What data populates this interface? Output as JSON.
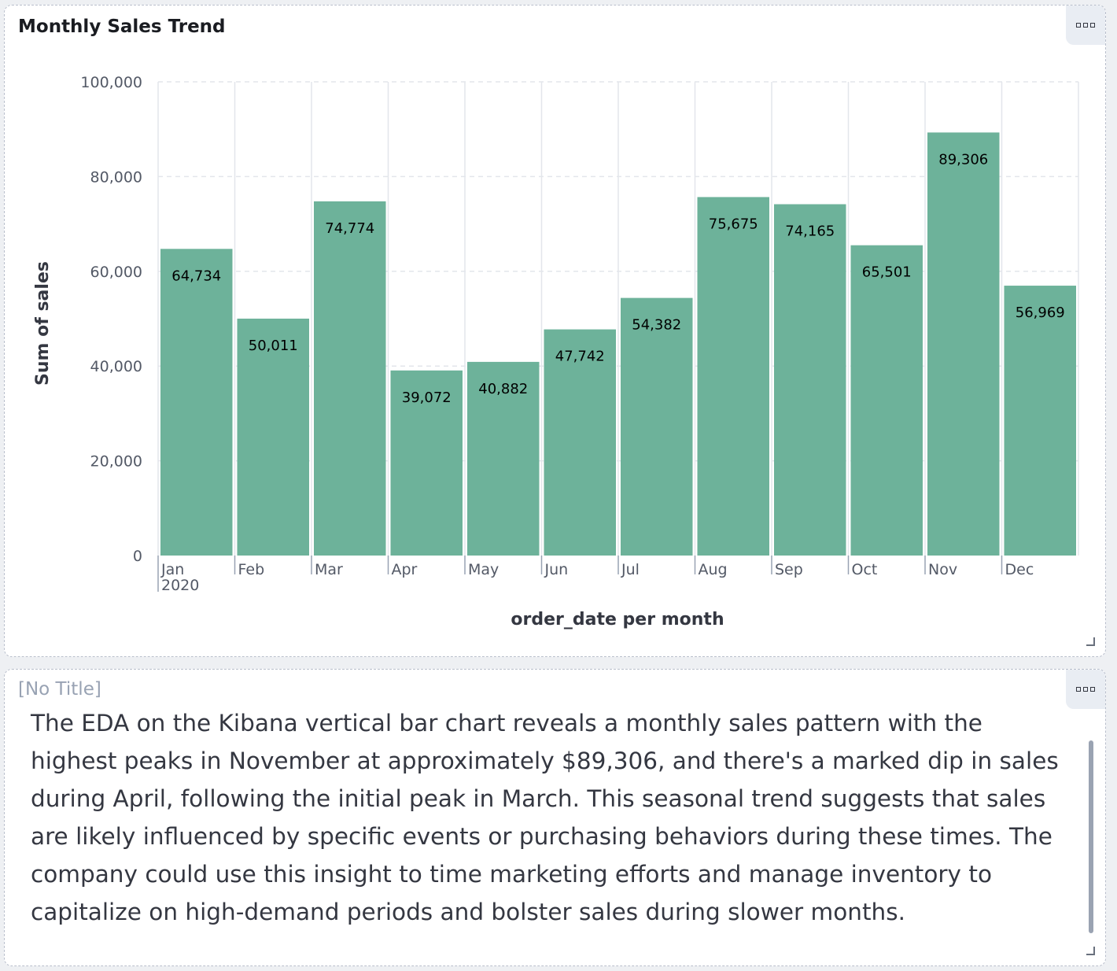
{
  "panels": {
    "chart": {
      "title": "Monthly Sales Trend"
    },
    "text": {
      "title": "[No Title]",
      "body": "The EDA on the Kibana vertical bar chart reveals a monthly sales pattern with the highest peaks in November at approximately $89,306, and there's a marked dip in sales during April, following the initial peak in March. This seasonal trend suggests that sales are likely influenced by specific events or purchasing behaviors during these times. The company could use this insight to time marketing efforts and manage inventory to capitalize on high-demand periods and bolster sales during slower months."
    }
  },
  "icons": {
    "panel_menu": "options-icon",
    "resize": "resize-handle-icon"
  },
  "colors": {
    "bar": "#6db29a",
    "grid": "#e3e6eb"
  },
  "chart_data": {
    "type": "bar",
    "categories": [
      "Jan",
      "Feb",
      "Mar",
      "Apr",
      "May",
      "Jun",
      "Jul",
      "Aug",
      "Sep",
      "Oct",
      "Nov",
      "Dec"
    ],
    "year_label": "2020",
    "values": [
      64734,
      50011,
      74774,
      39072,
      40882,
      47742,
      54382,
      75675,
      74165,
      65501,
      89306,
      56969
    ],
    "value_labels": [
      "64,734",
      "50,011",
      "74,774",
      "39,072",
      "40,882",
      "47,742",
      "54,382",
      "75,675",
      "74,165",
      "65,501",
      "89,306",
      "56,969"
    ],
    "xlabel": "order_date per month",
    "ylabel": "Sum of sales",
    "ylim": [
      0,
      100000
    ],
    "yticks": [
      0,
      20000,
      40000,
      60000,
      80000,
      100000
    ],
    "ytick_labels": [
      "0",
      "20,000",
      "40,000",
      "60,000",
      "80,000",
      "100,000"
    ],
    "grid": true
  }
}
